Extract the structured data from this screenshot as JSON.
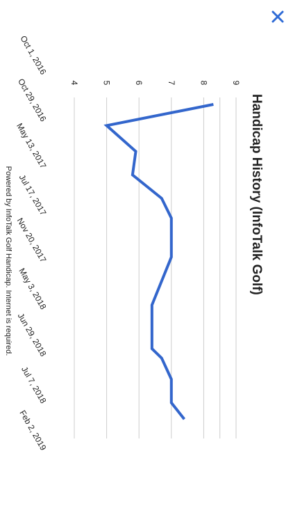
{
  "colors": {
    "accent": "#2f6bd6",
    "line": "#3366cc",
    "grid": "#cccccc",
    "text": "#222222"
  },
  "close": {
    "icon": "close-icon"
  },
  "footer": {
    "text": "Powered by InfoTalk Golf Handicap. Internet is required."
  },
  "chart_data": {
    "type": "line",
    "title": "Handicap History (InfoTalk Golf)",
    "xlabel": "",
    "ylabel": "",
    "categories": [
      "Oct 1, 2016",
      "Oct 29, 2016",
      "May 13, 2017",
      "Jul 17, 2017",
      "Nov 20, 2017",
      "May 3, 2018",
      "Jun 29, 2018",
      "Jul 7, 2018",
      "Feb 2, 2019"
    ],
    "yticks": [
      "4",
      "5",
      "6",
      "7",
      "8",
      "9"
    ],
    "ylim": [
      4,
      9.4
    ],
    "grid": true,
    "series": [
      {
        "x": [
          0,
          0.45,
          1.0,
          1.0,
          1.5,
          2.0,
          2.0,
          2.42,
          2.75,
          3.25,
          4.27,
          4.27,
          5.2,
          5.4,
          5.4,
          5.85,
          6.35,
          6.7
        ],
        "values": [
          8.3,
          5.0,
          5.9,
          5.9,
          5.8,
          6.7,
          6.7,
          7.0,
          7.0,
          7.0,
          6.4,
          6.4,
          6.4,
          6.7,
          6.7,
          7.0,
          7.0,
          7.4
        ]
      }
    ]
  }
}
